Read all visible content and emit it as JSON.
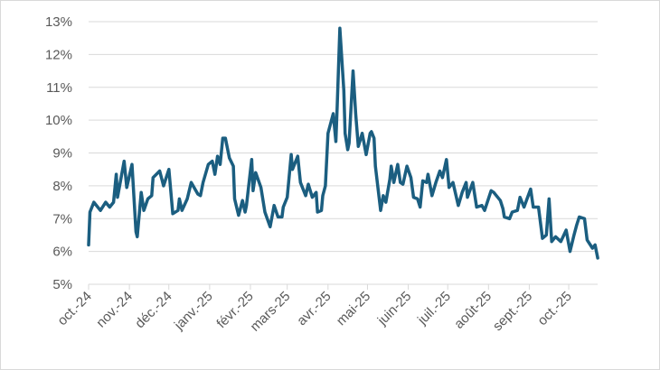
{
  "chart_data": {
    "type": "line",
    "title": "",
    "xlabel": "",
    "ylabel": "",
    "ylim": [
      5,
      13
    ],
    "y_ticks": [
      "5%",
      "6%",
      "7%",
      "8%",
      "9%",
      "10%",
      "11%",
      "12%",
      "13%"
    ],
    "x_range": [
      "2024-10-01",
      "2025-10-23"
    ],
    "x_ticks": [
      {
        "date": "2024-10-01",
        "label": "oct.-24"
      },
      {
        "date": "2024-11-01",
        "label": "nov.-24"
      },
      {
        "date": "2024-12-01",
        "label": "déc.-24"
      },
      {
        "date": "2025-01-01",
        "label": "janv.-25"
      },
      {
        "date": "2025-02-01",
        "label": "févr.-25"
      },
      {
        "date": "2025-03-01",
        "label": "mars-25"
      },
      {
        "date": "2025-04-01",
        "label": "avr.-25"
      },
      {
        "date": "2025-05-01",
        "label": "mai-25"
      },
      {
        "date": "2025-06-01",
        "label": "juin-25"
      },
      {
        "date": "2025-07-01",
        "label": "juil.-25"
      },
      {
        "date": "2025-08-01",
        "label": "août-25"
      },
      {
        "date": "2025-09-01",
        "label": "sept.-25"
      },
      {
        "date": "2025-10-01",
        "label": "oct.-25"
      }
    ],
    "grid": "horizontal",
    "legend": "none",
    "line_color": "#1b5e80",
    "series": [
      {
        "x": [
          "2024-10-01",
          "2024-10-02",
          "2024-10-05",
          "2024-10-10",
          "2024-10-14",
          "2024-10-17",
          "2024-10-20",
          "2024-10-22",
          "2024-10-23",
          "2024-10-28",
          "2024-10-30",
          "2024-11-03",
          "2024-11-06",
          "2024-11-07",
          "2024-11-10",
          "2024-11-12",
          "2024-11-15",
          "2024-11-18",
          "2024-11-19",
          "2024-11-24",
          "2024-11-26",
          "2024-11-27",
          "2024-12-01",
          "2024-12-04",
          "2024-12-08",
          "2024-12-09",
          "2024-12-11",
          "2024-12-15",
          "2024-12-18",
          "2024-12-23",
          "2024-12-25",
          "2024-12-27",
          "2024-12-31",
          "2025-01-03",
          "2025-01-05",
          "2025-01-07",
          "2025-01-09",
          "2025-01-11",
          "2025-01-13",
          "2025-01-16",
          "2025-01-19",
          "2025-01-20",
          "2025-01-23",
          "2025-01-26",
          "2025-01-28",
          "2025-01-29",
          "2025-02-02",
          "2025-02-03",
          "2025-02-05",
          "2025-02-09",
          "2025-02-12",
          "2025-02-16",
          "2025-02-19",
          "2025-02-22",
          "2025-02-25",
          "2025-02-26",
          "2025-03-01",
          "2025-03-04",
          "2025-03-05",
          "2025-03-09",
          "2025-03-11",
          "2025-03-15",
          "2025-03-17",
          "2025-03-20",
          "2025-03-23",
          "2025-03-24",
          "2025-03-27",
          "2025-03-28",
          "2025-03-30",
          "2025-04-01",
          "2025-04-05",
          "2025-04-07",
          "2025-04-08",
          "2025-04-10",
          "2025-04-13",
          "2025-04-14",
          "2025-04-16",
          "2025-04-17",
          "2025-04-20",
          "2025-04-22",
          "2025-04-24",
          "2025-04-27",
          "2025-04-30",
          "2025-05-03",
          "2025-05-04",
          "2025-05-06",
          "2025-05-07",
          "2025-05-11",
          "2025-05-13",
          "2025-05-15",
          "2025-05-18",
          "2025-05-19",
          "2025-05-21",
          "2025-05-24",
          "2025-05-26",
          "2025-05-28",
          "2025-05-31",
          "2025-06-03",
          "2025-06-05",
          "2025-06-08",
          "2025-06-10",
          "2025-06-12",
          "2025-06-15",
          "2025-06-16",
          "2025-06-19",
          "2025-06-22",
          "2025-06-25",
          "2025-06-27",
          "2025-06-30",
          "2025-07-02",
          "2025-07-05",
          "2025-07-09",
          "2025-07-12",
          "2025-07-15",
          "2025-07-16",
          "2025-07-20",
          "2025-07-23",
          "2025-07-27",
          "2025-07-29",
          "2025-08-03",
          "2025-08-05",
          "2025-08-10",
          "2025-08-12",
          "2025-08-13",
          "2025-08-17",
          "2025-08-19",
          "2025-08-23",
          "2025-08-25",
          "2025-08-28",
          "2025-09-02",
          "2025-09-04",
          "2025-09-08",
          "2025-09-11",
          "2025-09-14",
          "2025-09-16",
          "2025-09-18",
          "2025-09-21",
          "2025-09-25",
          "2025-09-29",
          "2025-10-02",
          "2025-10-05",
          "2025-10-07",
          "2025-10-09",
          "2025-10-13",
          "2025-10-15",
          "2025-10-19",
          "2025-10-21",
          "2025-10-23"
        ],
        "values": [
          6.2,
          7.2,
          7.5,
          7.25,
          7.5,
          7.35,
          7.5,
          8.35,
          7.65,
          8.75,
          7.95,
          8.65,
          6.6,
          6.45,
          7.8,
          7.25,
          7.6,
          7.7,
          8.25,
          8.45,
          8.15,
          8.0,
          8.5,
          7.15,
          7.25,
          7.6,
          7.25,
          7.6,
          8.1,
          7.75,
          7.7,
          8.1,
          8.65,
          8.75,
          8.35,
          8.9,
          8.65,
          9.45,
          9.45,
          8.85,
          8.6,
          7.6,
          7.1,
          7.55,
          7.2,
          7.4,
          8.8,
          7.85,
          8.4,
          7.95,
          7.2,
          6.75,
          7.4,
          7.05,
          7.05,
          7.35,
          7.65,
          8.95,
          8.5,
          8.9,
          8.1,
          7.7,
          8.05,
          7.65,
          7.8,
          7.2,
          7.25,
          7.7,
          8.0,
          9.6,
          10.2,
          9.35,
          10.45,
          12.8,
          10.9,
          9.6,
          9.1,
          9.3,
          11.5,
          10.2,
          9.2,
          9.6,
          8.95,
          9.6,
          9.65,
          9.45,
          8.6,
          7.25,
          7.7,
          7.5,
          8.2,
          8.6,
          8.1,
          8.65,
          8.1,
          8.05,
          8.6,
          8.25,
          7.65,
          7.6,
          7.35,
          8.15,
          8.1,
          8.35,
          7.7,
          8.1,
          8.45,
          8.25,
          8.8,
          7.95,
          8.1,
          7.4,
          7.8,
          8.1,
          7.65,
          8.1,
          7.35,
          7.4,
          7.25,
          7.85,
          7.8,
          7.55,
          7.3,
          7.05,
          7.0,
          7.2,
          7.25,
          7.65,
          7.35,
          7.9,
          7.35,
          7.35,
          6.4,
          6.5,
          7.6,
          6.3,
          6.45,
          6.3,
          6.65,
          6.0,
          6.5,
          6.8,
          7.05,
          7.0,
          6.35,
          6.1,
          6.2,
          5.8
        ]
      }
    ]
  }
}
